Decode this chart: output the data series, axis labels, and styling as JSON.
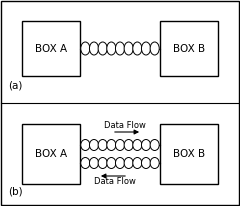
{
  "background_color": "#ffffff",
  "box_color": "#ffffff",
  "box_edge_color": "#000000",
  "line_color": "#000000",
  "label_a": "(a)",
  "label_b": "(b)",
  "box_a_text": "BOX A",
  "box_b_text": "BOX B",
  "data_flow_right": "Data Flow",
  "data_flow_left": "Data Flow",
  "coil_color": "#ffffff",
  "coil_edge_color": "#000000",
  "fig_w": 2.4,
  "fig_h": 2.06,
  "dpi": 100
}
